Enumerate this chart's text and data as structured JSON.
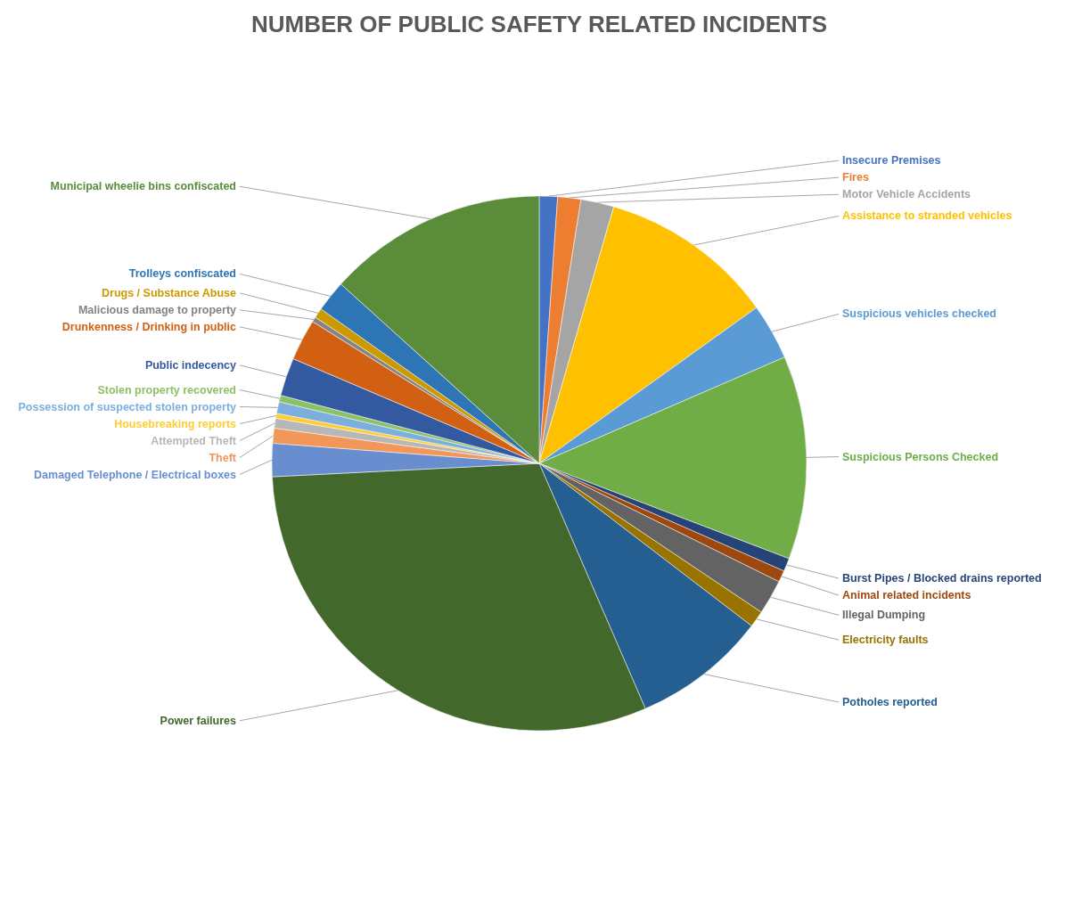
{
  "chart_data": {
    "type": "pie",
    "title": "NUMBER OF PUBLIC SAFETY RELATED INCIDENTS",
    "categories": [
      "Insecure Premises",
      "Fires",
      "Motor Vehicle Accidents",
      "Assistance to stranded vehicles",
      "Suspicious vehicles checked",
      "Suspicious Persons Checked",
      "Burst Pipes / Blocked drains reported",
      "Animal related incidents",
      "Illegal Dumping",
      "Electricity faults",
      "Potholes reported",
      "Power failures",
      "Damaged Telephone / Electrical boxes",
      "Theft",
      "Attempted Theft",
      "Housebreaking reports",
      "Possession of suspected stolen property",
      "Stolen property recovered",
      "Public indecency",
      "Drunkenness / Drinking in public",
      "Malicious damage to property",
      "Drugs / Substance Abuse",
      "Trolleys confiscated",
      "Municipal wheelie bins confiscated"
    ],
    "values": [
      1.1,
      1.4,
      2.0,
      10.6,
      3.4,
      12.3,
      0.8,
      0.7,
      2.1,
      1.0,
      8.1,
      30.7,
      2.0,
      0.9,
      0.6,
      0.3,
      0.7,
      0.4,
      2.3,
      2.5,
      0.3,
      0.6,
      1.9,
      13.3
    ],
    "colors": [
      "#4472c4",
      "#ed7d31",
      "#a5a5a5",
      "#ffc000",
      "#5b9bd5",
      "#70ad47",
      "#264478",
      "#9e480e",
      "#636363",
      "#997300",
      "#255e91",
      "#43682b",
      "#698ed0",
      "#f1975a",
      "#b7b7b7",
      "#ffcd33",
      "#7cafdd",
      "#8cc168",
      "#335aa1",
      "#d26012",
      "#848484",
      "#cc9a00",
      "#2e75b6",
      "#5b8c3a"
    ],
    "legend": false
  }
}
